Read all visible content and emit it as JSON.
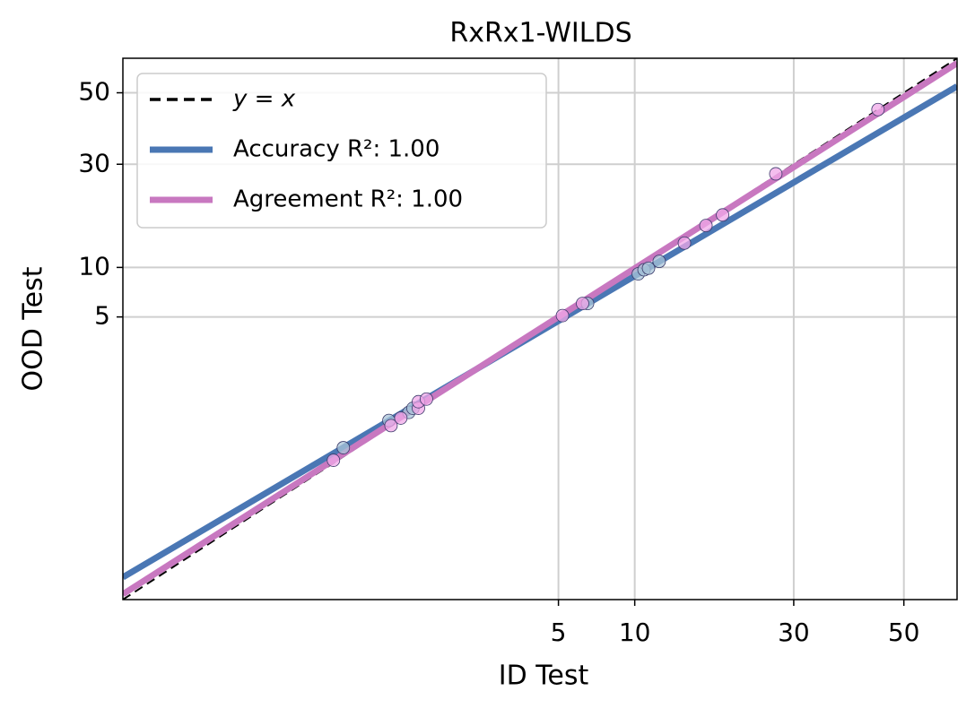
{
  "chart_data": {
    "type": "scatter",
    "title": "RxRx1-WILDS",
    "xlabel": "ID Test",
    "ylabel": "OOD Test",
    "xscale": "probit",
    "yscale": "probit",
    "xlim": [
      0.01,
      60
    ],
    "ylim": [
      0.01,
      60
    ],
    "xticks": [
      5,
      10,
      30,
      50
    ],
    "yticks": [
      5,
      10,
      30,
      50
    ],
    "grid": true,
    "legend": "upper left",
    "series": [
      {
        "name": "y = x",
        "color": "#000000",
        "style": "dashed"
      },
      {
        "name": "Accuracy R²: 1.00",
        "color": "#4a77b4",
        "marker_color": "#a9c4d8",
        "fit": {
          "slope": 0.907,
          "intercept": -0.182
        },
        "x": [
          0.38,
          0.71,
          0.92,
          0.97,
          6.6,
          10.3,
          10.8,
          11.2,
          12.2
        ],
        "y": [
          0.46,
          0.81,
          0.95,
          1.03,
          6.1,
          9.2,
          9.7,
          9.9,
          10.8
        ]
      },
      {
        "name": "Agreement R²: 1.00",
        "color": "#c878c0",
        "marker_color": "#f0a8e8",
        "fit": {
          "slope": 0.981,
          "intercept": -0.031
        },
        "x": [
          0.33,
          0.73,
          0.83,
          1.04,
          1.04,
          1.15,
          5.2,
          6.3,
          14.8,
          17.3,
          19.4,
          27.1,
          45.1
        ],
        "y": [
          0.35,
          0.73,
          0.85,
          1.03,
          1.17,
          1.23,
          5.1,
          6.1,
          13.5,
          16.5,
          18.5,
          27.6,
          45.1
        ]
      }
    ]
  }
}
